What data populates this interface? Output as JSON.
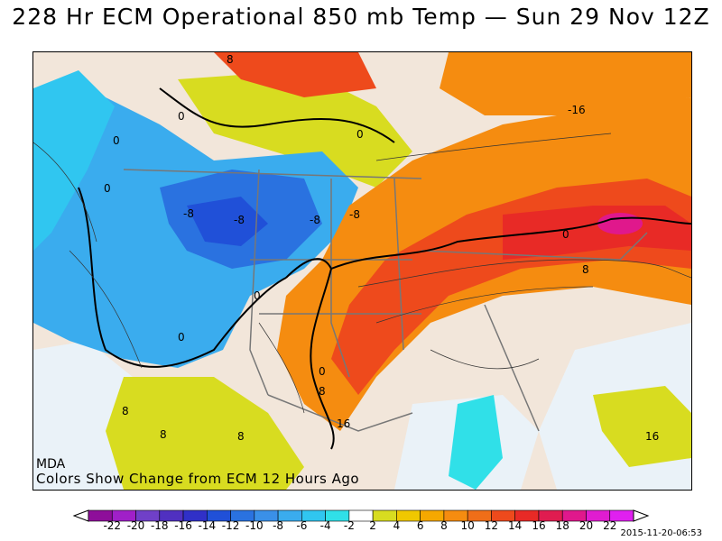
{
  "title": "228 Hr ECM Operational 850 mb Temp — Sun 29 Nov 12Z",
  "source": "MDA",
  "note": "Colors Show Change from ECM 12 Hours Ago",
  "timestamp": "2015-11-20-06:53",
  "colorbar": {
    "ticks": [
      "-22",
      "-20",
      "-18",
      "-16",
      "-14",
      "-12",
      "-10",
      "-8",
      "-6",
      "-4",
      "-2",
      "2",
      "4",
      "6",
      "8",
      "10",
      "12",
      "14",
      "16",
      "18",
      "20",
      "22"
    ],
    "colors": [
      "#8e0e9a",
      "#a020c8",
      "#7040c8",
      "#5030c0",
      "#3030c8",
      "#2050d8",
      "#2a72e0",
      "#3a90e8",
      "#3aacee",
      "#30c6f0",
      "#30e0e8",
      "#ffffff",
      "#d8dc20",
      "#f0c800",
      "#f5a800",
      "#f58c10",
      "#f06e18",
      "#ee4a1c",
      "#e82a26",
      "#e01c50",
      "#e0188c",
      "#e01cd0",
      "#e020f0"
    ]
  },
  "contour_labels": [
    {
      "text": "8"
    },
    {
      "text": "0"
    },
    {
      "text": "0"
    },
    {
      "text": "0"
    },
    {
      "text": "0"
    },
    {
      "text": "-16"
    },
    {
      "text": "-8"
    },
    {
      "text": "-8"
    },
    {
      "text": "-8"
    },
    {
      "text": "-8"
    },
    {
      "text": "0"
    },
    {
      "text": "0"
    },
    {
      "text": "0"
    },
    {
      "text": "8"
    },
    {
      "text": "0"
    },
    {
      "text": "8"
    },
    {
      "text": "16"
    },
    {
      "text": "8"
    },
    {
      "text": "8"
    },
    {
      "text": "8"
    },
    {
      "text": "16"
    }
  ]
}
